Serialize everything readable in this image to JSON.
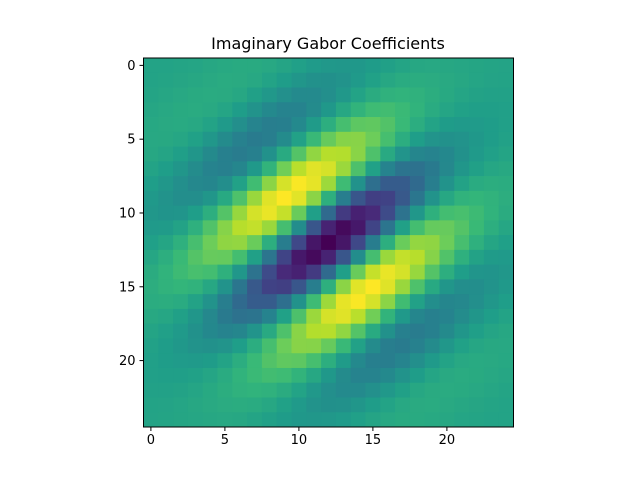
{
  "chart_data": {
    "type": "heatmap",
    "title": "Imaginary Gabor Coefficients",
    "xlabel": "",
    "ylabel": "",
    "rows": 25,
    "cols": 25,
    "x_ticks": [
      0,
      5,
      10,
      15,
      20
    ],
    "y_ticks": [
      0,
      5,
      10,
      15,
      20
    ],
    "x_tick_labels": [
      "0",
      "5",
      "10",
      "15",
      "20"
    ],
    "y_tick_labels": [
      "0",
      "5",
      "10",
      "15",
      "20"
    ],
    "xlim": [
      -0.5,
      24.5
    ],
    "ylim": [
      24.5,
      -0.5
    ],
    "colormap": "viridis",
    "value_range": [
      -1,
      1
    ],
    "grid": false,
    "gabor": {
      "center_row": 12,
      "center_col": 12,
      "sigma": 5.5,
      "wavelength": 9.0,
      "direction": [
        0.6,
        0.8
      ],
      "phase": -1.5708,
      "amplitude": 1.0
    }
  }
}
